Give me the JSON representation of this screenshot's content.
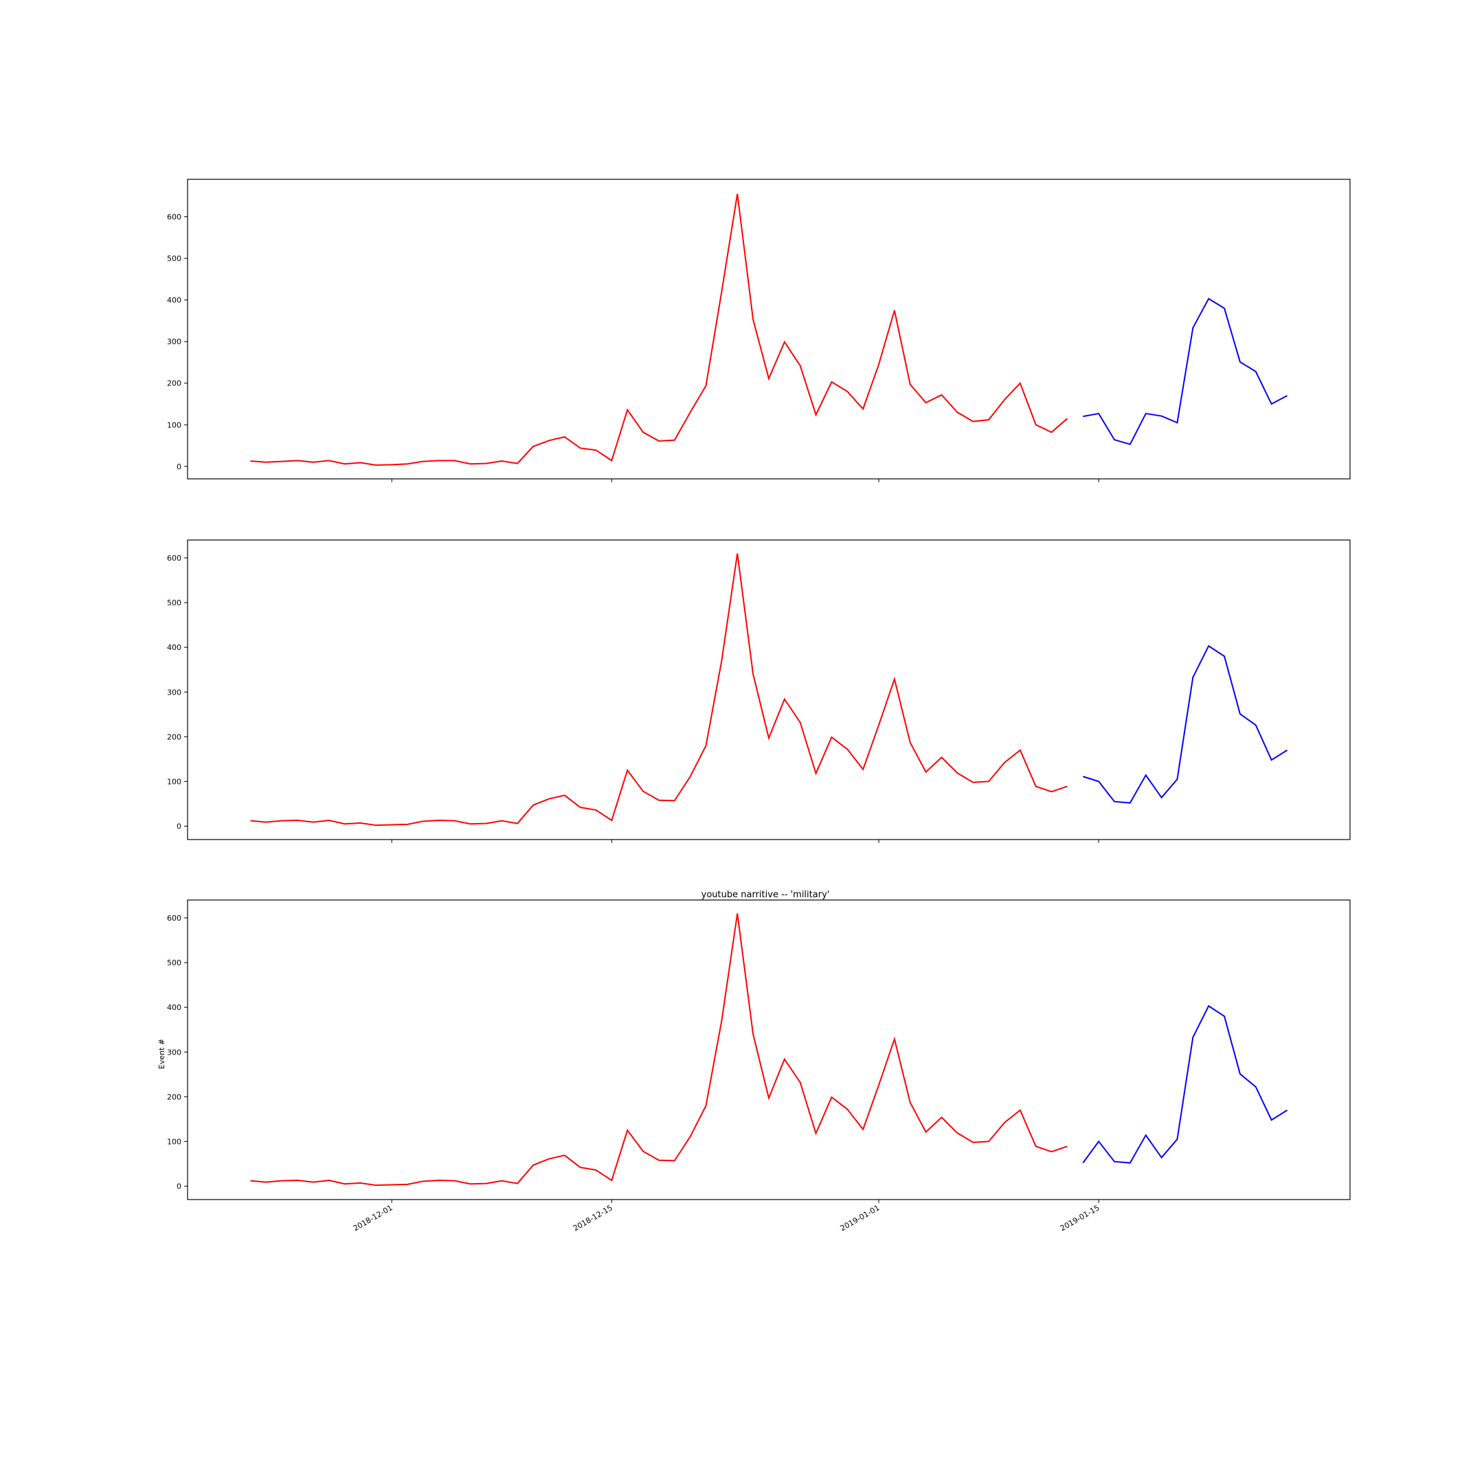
{
  "figure": {
    "title": "youtube narritive -- 'military'",
    "ylabel": "Event #"
  },
  "chart_data": [
    {
      "type": "line",
      "title": "",
      "xlabel": "",
      "ylabel": "",
      "xlim": [
        "2018-11-18",
        "2019-01-31"
      ],
      "ylim": [
        -30,
        690
      ],
      "x_ticks": [
        "2018-12-01",
        "2018-12-15",
        "2019-01-01",
        "2019-01-15"
      ],
      "x_ticklabels_visible": false,
      "y_ticks": [
        0,
        100,
        200,
        300,
        400,
        500,
        600
      ],
      "grid": false,
      "series": [
        {
          "color": "#ff0000",
          "start_date": "2018-11-22",
          "values": [
            13,
            10,
            12,
            14,
            10,
            14,
            6,
            9,
            3,
            4,
            6,
            12,
            14,
            14,
            6,
            7,
            13,
            7,
            48,
            62,
            71,
            44,
            39,
            14,
            136,
            82,
            61,
            63,
            130,
            194,
            420,
            655,
            353,
            211,
            299,
            242,
            124,
            203,
            180,
            138,
            245,
            375,
            197,
            153,
            172,
            130,
            108,
            112,
            160,
            200,
            100,
            82,
            115
          ]
        },
        {
          "color": "#0000ff",
          "start_date": "2019-01-14",
          "values": [
            120,
            127,
            64,
            53,
            127,
            121,
            105,
            333,
            403,
            380,
            251,
            228,
            150,
            170
          ]
        }
      ]
    },
    {
      "type": "line",
      "title": "",
      "xlabel": "",
      "ylabel": "",
      "xlim": [
        "2018-11-18",
        "2019-01-31"
      ],
      "ylim": [
        -30,
        640
      ],
      "x_ticks": [
        "2018-12-01",
        "2018-12-15",
        "2019-01-01",
        "2019-01-15"
      ],
      "x_ticklabels_visible": false,
      "y_ticks": [
        0,
        100,
        200,
        300,
        400,
        500,
        600
      ],
      "grid": false,
      "series": [
        {
          "color": "#ff0000",
          "start_date": "2018-11-22",
          "values": [
            12,
            9,
            12,
            13,
            9,
            13,
            5,
            7,
            2,
            3,
            4,
            11,
            13,
            12,
            5,
            6,
            12,
            6,
            47,
            61,
            69,
            42,
            36,
            13,
            125,
            78,
            58,
            57,
            111,
            180,
            370,
            610,
            340,
            197,
            284,
            232,
            118,
            199,
            172,
            127,
            226,
            329,
            187,
            121,
            154,
            119,
            98,
            100,
            142,
            170,
            89,
            77,
            89
          ]
        },
        {
          "color": "#0000ff",
          "start_date": "2019-01-14",
          "values": [
            111,
            100,
            55,
            52,
            114,
            64,
            105,
            333,
            403,
            380,
            251,
            226,
            148,
            170
          ]
        }
      ]
    },
    {
      "type": "line",
      "title": "youtube narritive -- 'military'",
      "xlabel": "",
      "ylabel": "Event #",
      "xlim": [
        "2018-11-18",
        "2019-01-31"
      ],
      "ylim": [
        -30,
        640
      ],
      "x_ticks": [
        "2018-12-01",
        "2018-12-15",
        "2019-01-01",
        "2019-01-15"
      ],
      "x_ticklabels_visible": true,
      "y_ticks": [
        0,
        100,
        200,
        300,
        400,
        500,
        600
      ],
      "grid": false,
      "series": [
        {
          "color": "#ff0000",
          "start_date": "2018-11-22",
          "values": [
            12,
            9,
            12,
            13,
            9,
            13,
            5,
            7,
            2,
            3,
            4,
            11,
            13,
            12,
            5,
            6,
            12,
            6,
            47,
            61,
            69,
            42,
            36,
            13,
            125,
            78,
            58,
            57,
            111,
            180,
            370,
            610,
            340,
            197,
            284,
            232,
            118,
            199,
            172,
            127,
            226,
            329,
            187,
            121,
            154,
            119,
            98,
            100,
            142,
            170,
            89,
            77,
            89
          ]
        },
        {
          "color": "#0000ff",
          "start_date": "2019-01-14",
          "values": [
            52,
            100,
            55,
            52,
            114,
            64,
            105,
            333,
            403,
            380,
            251,
            222,
            148,
            170
          ]
        }
      ]
    }
  ]
}
